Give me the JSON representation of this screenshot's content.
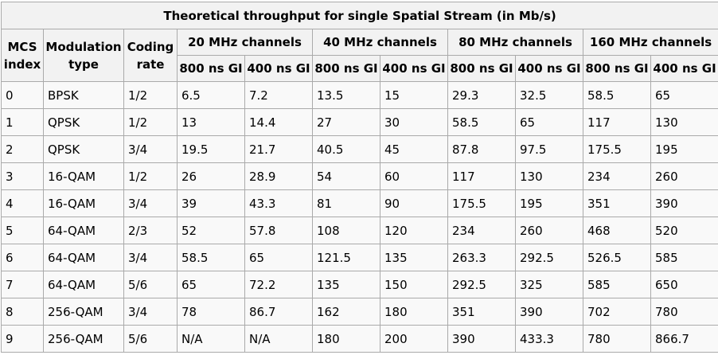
{
  "table": {
    "caption": "Theoretical throughput for single Spatial Stream (in Mb/s)",
    "headers": {
      "mcs_index": "MCS index",
      "modulation_type": "Modulation type",
      "coding_rate": "Coding rate",
      "groups": [
        "20 MHz channels",
        "40 MHz channels",
        "80 MHz channels",
        "160 MHz channels"
      ],
      "guard_intervals": [
        "800 ns GI",
        "400 ns GI",
        "800 ns GI",
        "400 ns GI",
        "800 ns GI",
        "400 ns GI",
        "800 ns GI",
        "400 ns GI"
      ]
    },
    "rows": [
      [
        "0",
        "BPSK",
        "1/2",
        "6.5",
        "7.2",
        "13.5",
        "15",
        "29.3",
        "32.5",
        "58.5",
        "65"
      ],
      [
        "1",
        "QPSK",
        "1/2",
        "13",
        "14.4",
        "27",
        "30",
        "58.5",
        "65",
        "117",
        "130"
      ],
      [
        "2",
        "QPSK",
        "3/4",
        "19.5",
        "21.7",
        "40.5",
        "45",
        "87.8",
        "97.5",
        "175.5",
        "195"
      ],
      [
        "3",
        "16-QAM",
        "1/2",
        "26",
        "28.9",
        "54",
        "60",
        "117",
        "130",
        "234",
        "260"
      ],
      [
        "4",
        "16-QAM",
        "3/4",
        "39",
        "43.3",
        "81",
        "90",
        "175.5",
        "195",
        "351",
        "390"
      ],
      [
        "5",
        "64-QAM",
        "2/3",
        "52",
        "57.8",
        "108",
        "120",
        "234",
        "260",
        "468",
        "520"
      ],
      [
        "6",
        "64-QAM",
        "3/4",
        "58.5",
        "65",
        "121.5",
        "135",
        "263.3",
        "292.5",
        "526.5",
        "585"
      ],
      [
        "7",
        "64-QAM",
        "5/6",
        "65",
        "72.2",
        "135",
        "150",
        "292.5",
        "325",
        "585",
        "650"
      ],
      [
        "8",
        "256-QAM",
        "3/4",
        "78",
        "86.7",
        "162",
        "180",
        "351",
        "390",
        "702",
        "780"
      ],
      [
        "9",
        "256-QAM",
        "5/6",
        "N/A",
        "N/A",
        "180",
        "200",
        "390",
        "433.3",
        "780",
        "866.7"
      ]
    ]
  }
}
